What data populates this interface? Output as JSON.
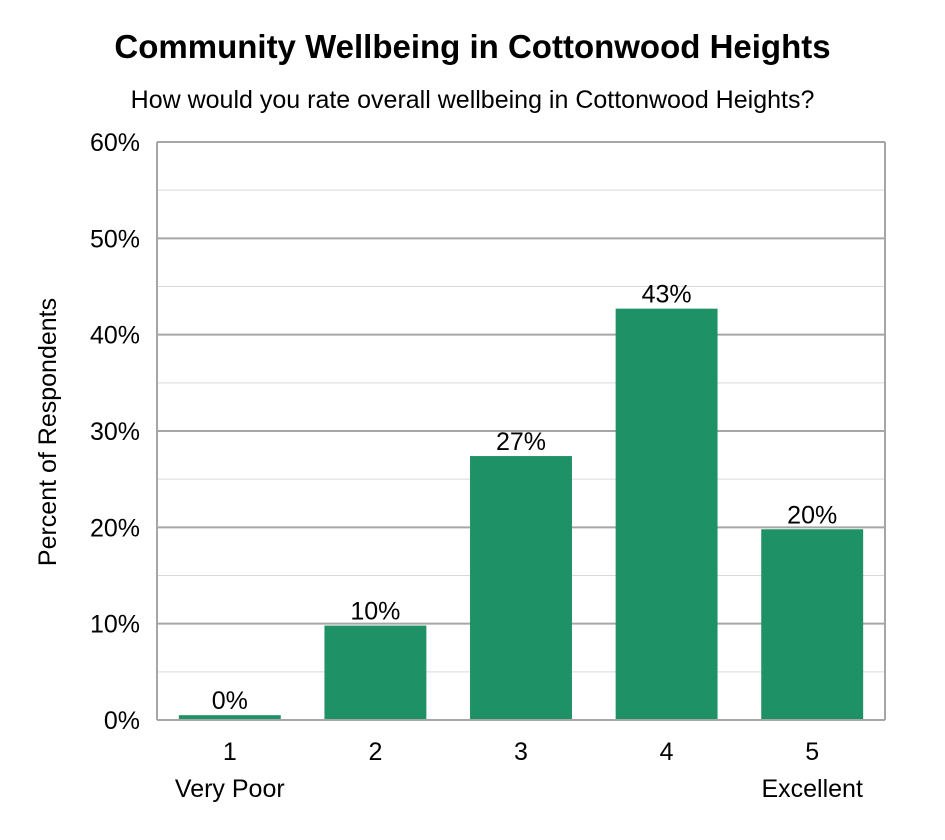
{
  "chart_data": {
    "type": "bar",
    "title": "Community Wellbeing in Cottonwood Heights",
    "subtitle": "How would you rate overall wellbeing in Cottonwood Heights?",
    "ylabel": "Percent of Respondents",
    "xlabel": "",
    "categories": [
      "1",
      "2",
      "3",
      "4",
      "5"
    ],
    "category_sublabels": [
      "Very Poor",
      "",
      "",
      "",
      "Excellent"
    ],
    "values": [
      0.5,
      9.8,
      27.4,
      42.7,
      19.8
    ],
    "data_labels": [
      "0%",
      "10%",
      "27%",
      "43%",
      "20%"
    ],
    "ylim": [
      0,
      60
    ],
    "yticks": [
      0,
      10,
      20,
      30,
      40,
      50,
      60
    ],
    "ytick_labels": [
      "0%",
      "10%",
      "20%",
      "30%",
      "40%",
      "50%",
      "60%"
    ],
    "grid": true,
    "legend": "none",
    "bar_color": "#1f9166"
  }
}
